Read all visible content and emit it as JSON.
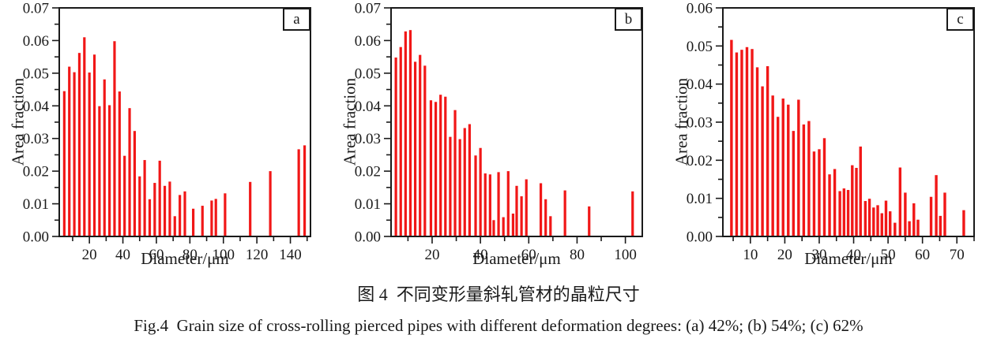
{
  "figure": {
    "caption_zh": "图 4 不同变形量斜轧管材的晶粒尺寸",
    "caption_en": "Fig.4 Grain size of cross-rolling pierced pipes with different deformation degrees: (a) 42%; (b) 54%; (c) 62%"
  },
  "colors": {
    "bar": "#f11717",
    "axis": "#1a1a1a",
    "text": "#1a1a1a"
  },
  "chart_data": [
    {
      "type": "bar",
      "panel_label": "a",
      "xlabel": "Diameter/μm",
      "ylabel": "Area fraction",
      "xlim": [
        2,
        152
      ],
      "ylim": [
        0,
        0.07
      ],
      "x_major_ticks": [
        20,
        40,
        60,
        80,
        100,
        120,
        140
      ],
      "x_minor_step": 10,
      "y_major_step": 0.01,
      "y_minor_step": 0.005,
      "y_tick_decimals": 2,
      "grid": "off",
      "legend": "none",
      "bar_width": 1.5,
      "x": [
        5,
        8,
        11,
        14,
        17,
        20,
        23,
        26,
        29,
        32,
        35,
        38,
        41,
        44,
        47,
        50,
        53,
        56,
        59,
        62,
        65,
        68,
        71,
        74,
        77,
        82,
        87.5,
        93,
        95.5,
        101,
        116,
        128,
        145,
        148.5
      ],
      "values": [
        0.0445,
        0.052,
        0.0503,
        0.0562,
        0.061,
        0.0502,
        0.0557,
        0.0399,
        0.0481,
        0.0402,
        0.0598,
        0.0444,
        0.0247,
        0.0393,
        0.0323,
        0.0184,
        0.0234,
        0.0114,
        0.0164,
        0.0232,
        0.0155,
        0.0168,
        0.0062,
        0.0127,
        0.0138,
        0.0085,
        0.0094,
        0.011,
        0.0115,
        0.0132,
        0.0167,
        0.02,
        0.0267,
        0.0279
      ]
    },
    {
      "type": "bar",
      "panel_label": "b",
      "xlabel": "Diameter/μm",
      "ylabel": "Area fraction",
      "xlim": [
        3,
        107
      ],
      "ylim": [
        0,
        0.07
      ],
      "x_major_ticks": [
        20,
        40,
        60,
        80,
        100
      ],
      "x_minor_step": 10,
      "y_major_step": 0.01,
      "y_minor_step": 0.005,
      "y_tick_decimals": 2,
      "grid": "off",
      "legend": "none",
      "bar_width": 1.05,
      "x": [
        5,
        7,
        9,
        11,
        13,
        15,
        17,
        19.5,
        21.5,
        23.5,
        25.5,
        27.5,
        29.5,
        31.5,
        33.5,
        35.5,
        38,
        40,
        42,
        44,
        45.5,
        47.5,
        49.5,
        51.5,
        53.5,
        55,
        57,
        59,
        65,
        67,
        69,
        75,
        85,
        103
      ],
      "values": [
        0.0548,
        0.058,
        0.0628,
        0.0632,
        0.0535,
        0.0556,
        0.0523,
        0.0417,
        0.0412,
        0.0434,
        0.0428,
        0.0305,
        0.0387,
        0.0298,
        0.0332,
        0.0344,
        0.0248,
        0.0271,
        0.0193,
        0.019,
        0.005,
        0.0197,
        0.0059,
        0.02,
        0.007,
        0.0155,
        0.0123,
        0.0175,
        0.0163,
        0.0114,
        0.0062,
        0.0141,
        0.0092,
        0.0138
      ]
    },
    {
      "type": "bar",
      "panel_label": "c",
      "xlabel": "Diameter/μm",
      "ylabel": "Area fraction",
      "xlim": [
        2,
        75
      ],
      "ylim": [
        0,
        0.06
      ],
      "x_major_ticks": [
        10,
        20,
        30,
        40,
        50,
        60,
        70
      ],
      "x_minor_step": 5,
      "y_major_step": 0.01,
      "y_minor_step": 0.005,
      "y_tick_decimals": 2,
      "grid": "off",
      "legend": "none",
      "bar_width": 0.78,
      "x": [
        4.5,
        6,
        7.5,
        9,
        10.5,
        12,
        13.5,
        15,
        16.5,
        18,
        19.5,
        21,
        22.5,
        24,
        25.5,
        27,
        28.5,
        30,
        31.5,
        33,
        34.5,
        36,
        37.2,
        38.4,
        39.6,
        40.8,
        42,
        43.4,
        44.6,
        45.8,
        47,
        48.2,
        49.4,
        50.6,
        52,
        53.5,
        55,
        56.2,
        57.5,
        58.7,
        62.5,
        64,
        65.2,
        66.5,
        72
      ],
      "values": [
        0.0516,
        0.0483,
        0.049,
        0.0497,
        0.0492,
        0.0444,
        0.0394,
        0.0447,
        0.037,
        0.0314,
        0.0362,
        0.0346,
        0.0277,
        0.0359,
        0.0294,
        0.0303,
        0.0223,
        0.0229,
        0.0258,
        0.0163,
        0.0177,
        0.0119,
        0.0126,
        0.0122,
        0.0187,
        0.018,
        0.0236,
        0.0093,
        0.0099,
        0.0076,
        0.0082,
        0.0061,
        0.0094,
        0.0066,
        0.0036,
        0.0181,
        0.0115,
        0.004,
        0.0087,
        0.0044,
        0.0104,
        0.0161,
        0.0054,
        0.0115,
        0.0069
      ]
    }
  ]
}
